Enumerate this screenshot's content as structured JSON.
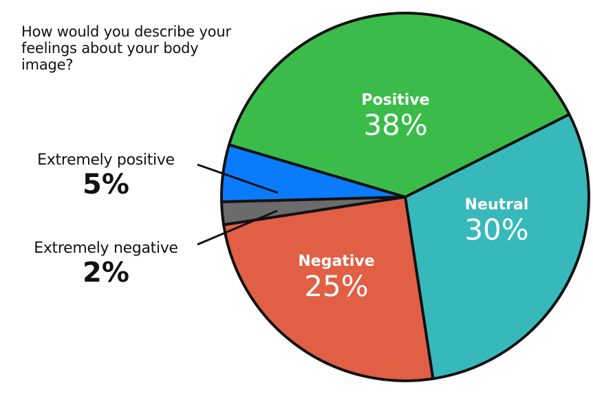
{
  "title": "How would you describe your feelings about your body image?",
  "colors": {
    "positive": "#3bbc4a",
    "neutral": "#37b9bc",
    "negative": "#e05f45",
    "extremely_negative": "#6b6b6b",
    "extremely_positive": "#0a7bfa",
    "outline": "#111111"
  },
  "labels": {
    "positive": {
      "name": "Positive",
      "pct": "38%"
    },
    "neutral": {
      "name": "Neutral",
      "pct": "30%"
    },
    "negative": {
      "name": "Negative",
      "pct": "25%"
    },
    "extremely_positive": {
      "name": "Extremely positive",
      "pct": "5%"
    },
    "extremely_negative": {
      "name": "Extremely negative",
      "pct": "2%"
    }
  },
  "chart_data": {
    "type": "pie",
    "title": "How would you describe your feelings about your body image?",
    "categories": [
      "Positive",
      "Neutral",
      "Negative",
      "Extremely negative",
      "Extremely positive"
    ],
    "values": [
      38,
      30,
      25,
      2,
      5
    ],
    "unit": "%",
    "colors": [
      "#3bbc4a",
      "#37b9bc",
      "#e05f45",
      "#6b6b6b",
      "#0a7bfa"
    ],
    "legend": "none (direct labels; small slices labeled outside with leader lines)"
  }
}
